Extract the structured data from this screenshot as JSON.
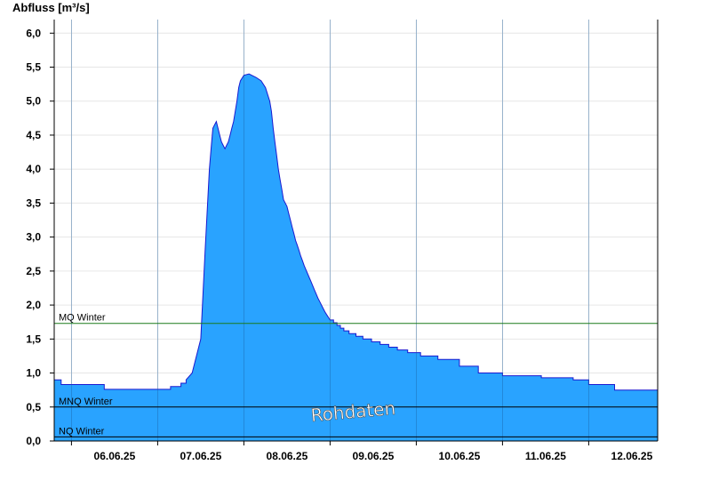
{
  "chart_data": {
    "type": "area",
    "ylabel": "Abfluss [m³/s]",
    "ylim": [
      0,
      6.2
    ],
    "yticks": [
      "0,0",
      "0,5",
      "1,0",
      "1,5",
      "2,0",
      "2,5",
      "3,0",
      "3,5",
      "4,0",
      "4,5",
      "5,0",
      "5,5",
      "6,0"
    ],
    "ytick_values": [
      0,
      0.5,
      1.0,
      1.5,
      2.0,
      2.5,
      3.0,
      3.5,
      4.0,
      4.5,
      5.0,
      5.5,
      6.0
    ],
    "x_unit": "days since 06.06.25 00:00",
    "xlim": [
      -0.2,
      6.8
    ],
    "xtick_labels": [
      "06.06.25",
      "07.06.25",
      "08.06.25",
      "09.06.25",
      "10.06.25",
      "11.06.25",
      "12.06.25"
    ],
    "xtick_positions": [
      0,
      1,
      2,
      3,
      4,
      5,
      6
    ],
    "grid": true,
    "fill_color": "#29a3ff",
    "line_color": "#1a1ad0",
    "series": [
      {
        "name": "Abfluss",
        "x": [
          -0.2,
          -0.12,
          -0.12,
          0.38,
          0.38,
          1.15,
          1.15,
          1.27,
          1.27,
          1.33,
          1.33,
          1.4,
          1.5,
          1.55,
          1.6,
          1.62,
          1.64,
          1.66,
          1.68,
          1.7,
          1.72,
          1.74,
          1.76,
          1.78,
          1.8,
          1.82,
          1.84,
          1.86,
          1.88,
          1.9,
          1.92,
          1.94,
          1.96,
          2.0,
          2.06,
          2.06,
          2.14,
          2.14,
          2.2,
          2.25,
          2.3,
          2.32,
          2.34,
          2.36,
          2.38,
          2.4,
          2.42,
          2.44,
          2.46,
          2.5,
          2.52,
          2.54,
          2.56,
          2.58,
          2.6,
          2.62,
          2.64,
          2.66,
          2.68,
          2.7,
          2.72,
          2.74,
          2.76,
          2.78,
          2.8,
          2.82,
          2.84,
          2.86,
          2.88,
          2.9,
          2.92,
          2.94,
          2.96,
          2.98,
          3.0,
          3.04,
          3.04,
          3.08,
          3.08,
          3.12,
          3.12,
          3.16,
          3.16,
          3.22,
          3.22,
          3.3,
          3.3,
          3.38,
          3.38,
          3.48,
          3.48,
          3.58,
          3.58,
          3.68,
          3.68,
          3.78,
          3.78,
          3.9,
          3.9,
          4.05,
          4.05,
          4.25,
          4.25,
          4.5,
          4.5,
          4.72,
          4.72,
          5.0,
          5.0,
          5.45,
          5.45,
          5.82,
          5.82,
          6.0,
          6.0,
          6.3,
          6.3,
          6.8
        ],
        "y": [
          0.9,
          0.9,
          0.83,
          0.83,
          0.76,
          0.76,
          0.8,
          0.8,
          0.85,
          0.85,
          0.9,
          1.0,
          1.5,
          2.8,
          4.0,
          4.3,
          4.6,
          4.65,
          4.7,
          4.6,
          4.5,
          4.4,
          4.35,
          4.3,
          4.35,
          4.4,
          4.5,
          4.6,
          4.7,
          4.85,
          5.0,
          5.2,
          5.3,
          5.38,
          5.4,
          5.4,
          5.35,
          5.35,
          5.3,
          5.2,
          5.0,
          4.85,
          4.6,
          4.4,
          4.2,
          4.0,
          3.85,
          3.7,
          3.55,
          3.45,
          3.35,
          3.25,
          3.15,
          3.05,
          2.95,
          2.88,
          2.8,
          2.72,
          2.65,
          2.58,
          2.52,
          2.46,
          2.4,
          2.34,
          2.28,
          2.22,
          2.16,
          2.1,
          2.05,
          2.0,
          1.95,
          1.9,
          1.86,
          1.82,
          1.78,
          1.78,
          1.74,
          1.74,
          1.7,
          1.7,
          1.66,
          1.66,
          1.62,
          1.62,
          1.58,
          1.58,
          1.54,
          1.54,
          1.5,
          1.5,
          1.46,
          1.46,
          1.42,
          1.42,
          1.38,
          1.38,
          1.34,
          1.34,
          1.3,
          1.3,
          1.25,
          1.25,
          1.2,
          1.2,
          1.1,
          1.1,
          1.0,
          1.0,
          0.96,
          0.96,
          0.93,
          0.93,
          0.9,
          0.9,
          0.83,
          0.83,
          0.75,
          0.75
        ]
      }
    ],
    "reference_lines": [
      {
        "label": "MQ Winter",
        "value": 1.73,
        "color": "#1a7a1a"
      },
      {
        "label": "MNQ Winter",
        "value": 0.5,
        "color": "#000000"
      },
      {
        "label": "NQ Winter",
        "value": 0.06,
        "color": "#000000"
      }
    ],
    "watermark": "Rohdaten"
  }
}
